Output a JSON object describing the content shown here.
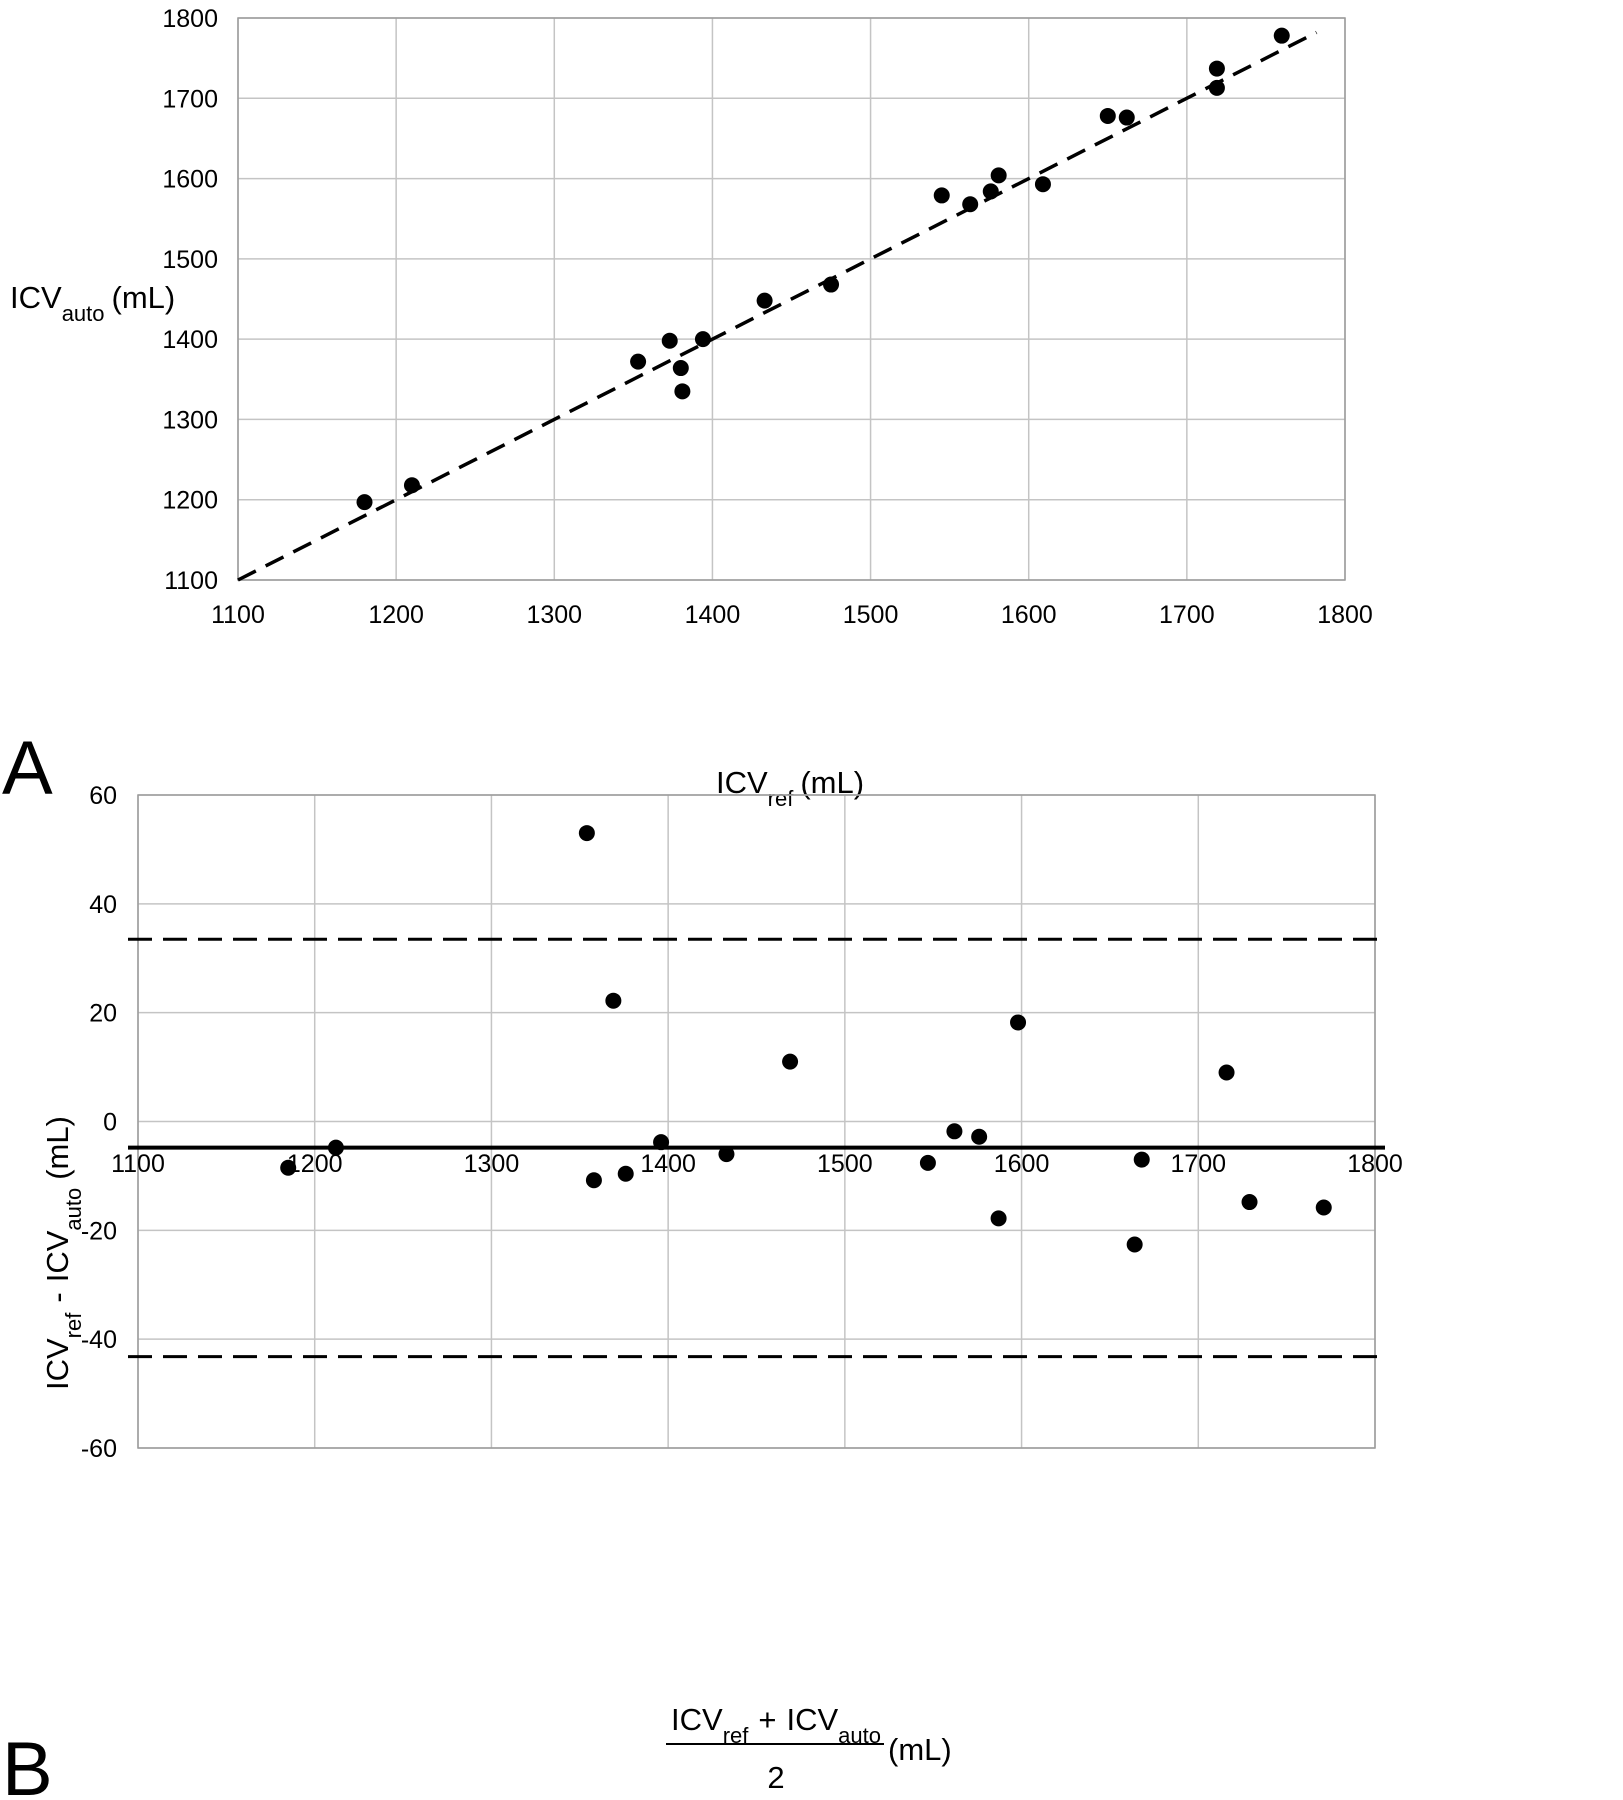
{
  "figure": {
    "panel_a_letter": "A",
    "panel_b_letter": "B"
  },
  "chart_data": [
    {
      "panel": "A",
      "type": "scatter",
      "xlabel": {
        "main": "ICV",
        "sub": "ref",
        "unit": "(mL)"
      },
      "ylabel": {
        "main": "ICV",
        "sub": "auto",
        "unit": "(mL)"
      },
      "xlim": [
        1100,
        1800
      ],
      "ylim": [
        1100,
        1800
      ],
      "xticks": [
        1100,
        1200,
        1300,
        1400,
        1500,
        1600,
        1700,
        1800
      ],
      "yticks": [
        1100,
        1200,
        1300,
        1400,
        1500,
        1600,
        1700,
        1800
      ],
      "grid": true,
      "points": [
        {
          "x": 1180,
          "y": 1197
        },
        {
          "x": 1210,
          "y": 1218
        },
        {
          "x": 1353,
          "y": 1372
        },
        {
          "x": 1373,
          "y": 1398
        },
        {
          "x": 1380,
          "y": 1364
        },
        {
          "x": 1381,
          "y": 1335
        },
        {
          "x": 1394,
          "y": 1400
        },
        {
          "x": 1433,
          "y": 1448
        },
        {
          "x": 1475,
          "y": 1468
        },
        {
          "x": 1545,
          "y": 1579
        },
        {
          "x": 1563,
          "y": 1568
        },
        {
          "x": 1576,
          "y": 1584
        },
        {
          "x": 1581,
          "y": 1604
        },
        {
          "x": 1609,
          "y": 1593
        },
        {
          "x": 1650,
          "y": 1678
        },
        {
          "x": 1662,
          "y": 1676
        },
        {
          "x": 1719,
          "y": 1713
        },
        {
          "x": 1719,
          "y": 1737
        },
        {
          "x": 1760,
          "y": 1778
        }
      ],
      "fit_line": {
        "style": "dashed",
        "x": [
          1100,
          1782
        ],
        "y": [
          1100,
          1782
        ]
      }
    },
    {
      "panel": "B",
      "type": "scatter",
      "xlabel": {
        "num_1": "ICV",
        "num_1_sub": "ref",
        "plus": "+",
        "num_2": "ICV",
        "num_2_sub": "auto",
        "denominator": "2",
        "unit": "(mL)"
      },
      "ylabel": {
        "part_1": "ICV",
        "part_1_sub": "ref",
        "minus": "-",
        "part_2": "ICV",
        "part_2_sub": "auto",
        "unit": "(mL)"
      },
      "xlim": [
        1100,
        1800
      ],
      "ylim": [
        -60,
        60
      ],
      "xticks": [
        1100,
        1200,
        1300,
        1400,
        1500,
        1600,
        1700,
        1800
      ],
      "yticks": [
        -60,
        -40,
        -20,
        0,
        20,
        40,
        60
      ],
      "grid": true,
      "points": [
        {
          "x": 1185,
          "y": -8.5
        },
        {
          "x": 1212,
          "y": -4.8
        },
        {
          "x": 1354,
          "y": 53
        },
        {
          "x": 1358,
          "y": -10.8
        },
        {
          "x": 1369,
          "y": 22.2
        },
        {
          "x": 1376,
          "y": -9.6
        },
        {
          "x": 1396,
          "y": -3.8
        },
        {
          "x": 1433,
          "y": -6
        },
        {
          "x": 1469,
          "y": 11
        },
        {
          "x": 1547,
          "y": -7.6
        },
        {
          "x": 1562,
          "y": -1.8
        },
        {
          "x": 1576,
          "y": -2.8
        },
        {
          "x": 1587,
          "y": -17.8
        },
        {
          "x": 1598,
          "y": 18.2
        },
        {
          "x": 1664,
          "y": -22.6
        },
        {
          "x": 1668,
          "y": -7
        },
        {
          "x": 1716,
          "y": 9
        },
        {
          "x": 1729,
          "y": -14.8
        },
        {
          "x": 1771,
          "y": -15.8
        }
      ],
      "mean_line": {
        "style": "solid",
        "y": -4.8
      },
      "limit_lines": [
        {
          "style": "dashed",
          "y": 33.5
        },
        {
          "style": "dashed",
          "y": -43.2
        }
      ]
    }
  ]
}
